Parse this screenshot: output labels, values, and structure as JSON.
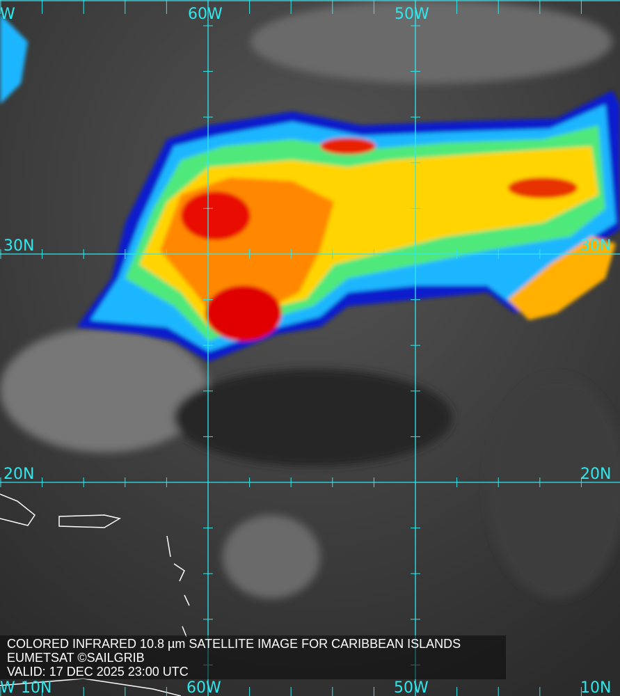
{
  "map": {
    "type": "satellite-infrared",
    "colors": {
      "grid": "#2fe8ee",
      "cold_top": "#e00000",
      "mid": "#ffd400",
      "edge": "#0010d0",
      "background": "#3a3a3a"
    },
    "longitude_labels_top": [
      "W",
      "60W",
      "50W"
    ],
    "longitude_labels_bottom": [
      "W",
      "60W",
      "50W"
    ],
    "latitude_labels_left": [
      "30N",
      "20N",
      "10N"
    ],
    "latitude_labels_right": [
      "30N",
      "20N",
      "10N"
    ]
  },
  "caption": {
    "line1": "COLORED INFRARED 10.8 µm SATELLITE IMAGE FOR CARIBBEAN ISLANDS",
    "line2": "EUMETSAT ©SAILGRIB",
    "line3": "VALID:  17 DEC 2025 23:00 UTC"
  }
}
